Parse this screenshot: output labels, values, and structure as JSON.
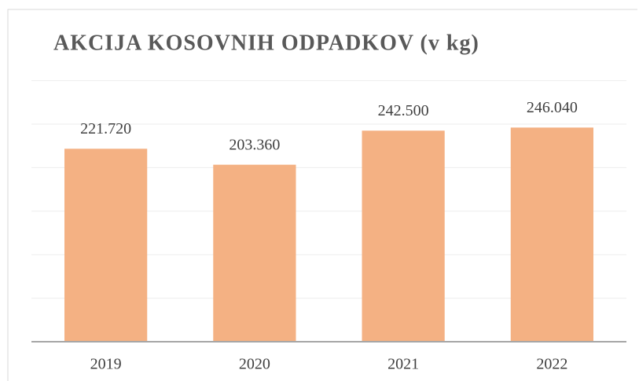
{
  "chart_data": {
    "type": "bar",
    "title": "AKCIJA KOSOVNIH ODPADKOV (v kg)",
    "categories": [
      "2019",
      "2020",
      "2021",
      "2022"
    ],
    "values": [
      221720,
      203360,
      242500,
      246040
    ],
    "value_labels": [
      "221.720",
      "203.360",
      "242.500",
      "246.040"
    ],
    "color": "#f4b183",
    "ylim": [
      0,
      300000
    ],
    "yticks": [
      0,
      50000,
      100000,
      150000,
      200000,
      250000,
      300000
    ],
    "grid": true
  }
}
